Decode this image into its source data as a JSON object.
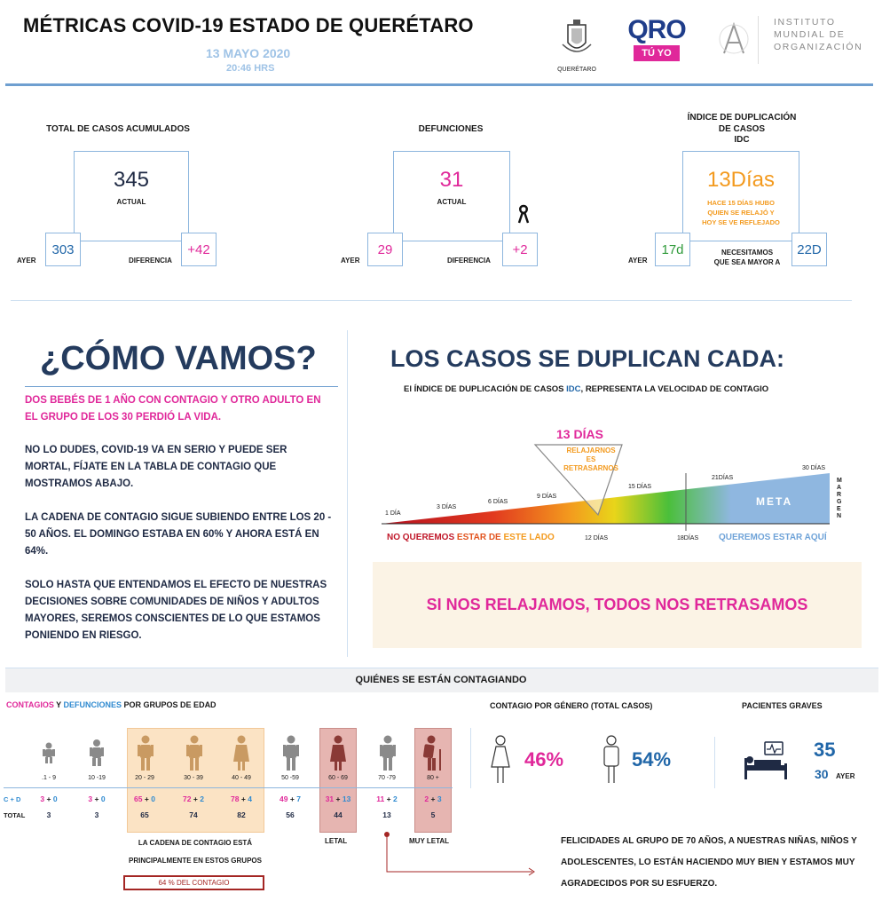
{
  "header": {
    "title": "MÉTRICAS COVID-19 ESTADO DE QUERÉTARO",
    "date": "13 MAYO 2020",
    "time": "20:46 HRS",
    "logo_gov_caption": "QUERÉTARO",
    "logo_qro_main": "QRO",
    "logo_qro_sub": "TÚ YO",
    "logo_imo_lines": [
      "INSTITUTO",
      "MUNDIAL DE",
      "ORGANIZACIÓN"
    ]
  },
  "metrics": [
    {
      "label": "TOTAL DE CASOS ACUMULADOS",
      "value": "345",
      "value_sub": "ACTUAL",
      "left_label": "AYER",
      "left_value": "303",
      "right_label": "DIFERENCIA",
      "right_value": "+42"
    },
    {
      "label": "DEFUNCIONES",
      "value": "31",
      "value_sub": "ACTUAL",
      "left_label": "AYER",
      "left_value": "29",
      "right_label": "DIFERENCIA",
      "right_value": "+2"
    },
    {
      "label_lines": [
        "ÍNDICE DE DUPLICACIÓN",
        "DE CASOS",
        "IDC"
      ],
      "value": "13Días",
      "value_sub_lines": [
        "HACE 15 DÍAS HUBO",
        "QUIEN SE RELAJÓ Y",
        "HOY SE VE REFLEJADO"
      ],
      "left_label": "AYER",
      "left_value": "17d",
      "right_label_lines": [
        "NECESITAMOS",
        "QUE SEA MAYOR A"
      ],
      "right_value": "22D"
    }
  ],
  "como_vamos": {
    "title": "¿CÓMO VAMOS?",
    "paragraph1": "DOS BEBÉS DE 1 AÑO CON CONTAGIO Y OTRO ADULTO EN EL GRUPO DE LOS 30 PERDIÓ LA VIDA.",
    "paragraph2": "NO LO DUDES, COVID-19 VA EN SERIO Y PUEDE SER MORTAL, FÍJATE EN LA TABLA DE CONTAGIO QUE MOSTRAMOS ABAJO.",
    "paragraph3": "LA CADENA DE CONTAGIO SIGUE SUBIENDO ENTRE LOS 20 - 50 AÑOS. EL DOMINGO ESTABA EN 60% Y AHORA ESTÁ EN 64%.",
    "paragraph4": "SOLO HASTA QUE ENTENDAMOS EL EFECTO DE NUESTRAS DECISIONES SOBRE COMUNIDADES DE NIÑOS Y ADULTOS MAYORES, SEREMOS CONSCIENTES DE LO QUE ESTAMOS PONIENDO EN RIESGO."
  },
  "duplicacion": {
    "title": "LOS CASOS SE DUPLICAN CADA:",
    "subtitle_pre": "El ÍNDICE DE DUPLICACIÓN DE CASOS ",
    "subtitle_idc": "IDC",
    "subtitle_post": ", REPRESENTA LA VELOCIDAD DE CONTAGIO",
    "current": "13 DÍAS",
    "marker_text_lines": [
      "RELAJARNOS",
      "ES",
      "RETRASARNOS"
    ],
    "scale_top": [
      "1 DÍA",
      "3 DÍAS",
      "6 DÍAS",
      "9 DÍAS",
      "15 DÍAS",
      "21DÍAS",
      "30 DÍAS"
    ],
    "scale_bottom": [
      "12 DÍAS",
      "18DÍAS"
    ],
    "meta": "META",
    "margen": "MARGEN",
    "left_caption_a": "NO QUEREMOS ",
    "left_caption_b": "ESTAR DE ",
    "left_caption_c": "ESTE LADO",
    "right_caption": "QUEREMOS ESTAR AQUÍ",
    "colors": {
      "red": "#c0182a",
      "orange": "#f39a1e",
      "yellow": "#e8d51a",
      "green": "#4bbf3a",
      "meta_blue": "#8fb7e0"
    }
  },
  "banner": "SI NOS RELAJAMOS, TODOS NOS RETRASAMOS",
  "contagiando": {
    "title": "QUIÉNES SE ESTÁN CONTAGIANDO",
    "groups_title_a": "CONTAGIOS",
    "groups_title_y": " Y ",
    "groups_title_b": "DEFUNCIONES",
    "groups_title_c": " POR GRUPOS DE EDAD",
    "row_cd_label": "C + D",
    "row_total_label": "TOTAL",
    "groups": [
      {
        "age": ".1 - 9",
        "c": "3",
        "d": "0",
        "total": "3"
      },
      {
        "age": "10 -19",
        "c": "3",
        "d": "0",
        "total": "3"
      },
      {
        "age": "20 - 29",
        "c": "65",
        "d": "0",
        "total": "65"
      },
      {
        "age": "30 - 39",
        "c": "72",
        "d": "2",
        "total": "74"
      },
      {
        "age": "40 - 49",
        "c": "78",
        "d": "4",
        "total": "82"
      },
      {
        "age": "50 -59",
        "c": "49",
        "d": "7",
        "total": "56"
      },
      {
        "age": "60 - 69",
        "c": "31",
        "d": "13",
        "total": "44"
      },
      {
        "age": "70 -79",
        "c": "11",
        "d": "2",
        "total": "13"
      },
      {
        "age": "80 +",
        "c": "2",
        "d": "3",
        "total": "5"
      }
    ],
    "cadena_line1": "LA CADENA DE CONTAGIO ESTÁ",
    "cadena_line2": "PRINCIPALMENTE EN ESTOS GRUPOS",
    "cadena_pct": "64 % DEL CONTAGIO",
    "letal": "LETAL",
    "muy_letal": "MUY LETAL",
    "genero_title": "CONTAGIO POR GÉNERO (TOTAL CASOS)",
    "mujeres_pct": "46%",
    "hombres_pct": "54%",
    "graves_title": "PACIENTES GRAVES",
    "graves_hoy": "35",
    "graves_ayer": "30",
    "graves_ayer_label": "AYER",
    "felicidades": "FELICIDADES AL GRUPO DE 70 AÑOS, A NUESTRAS NIÑAS, NIÑOS Y ADOLESCENTES, LO ESTÁN HACIENDO MUY BIEN Y ESTAMOS MUY AGRADECIDOS POR SU ESFUERZO."
  }
}
